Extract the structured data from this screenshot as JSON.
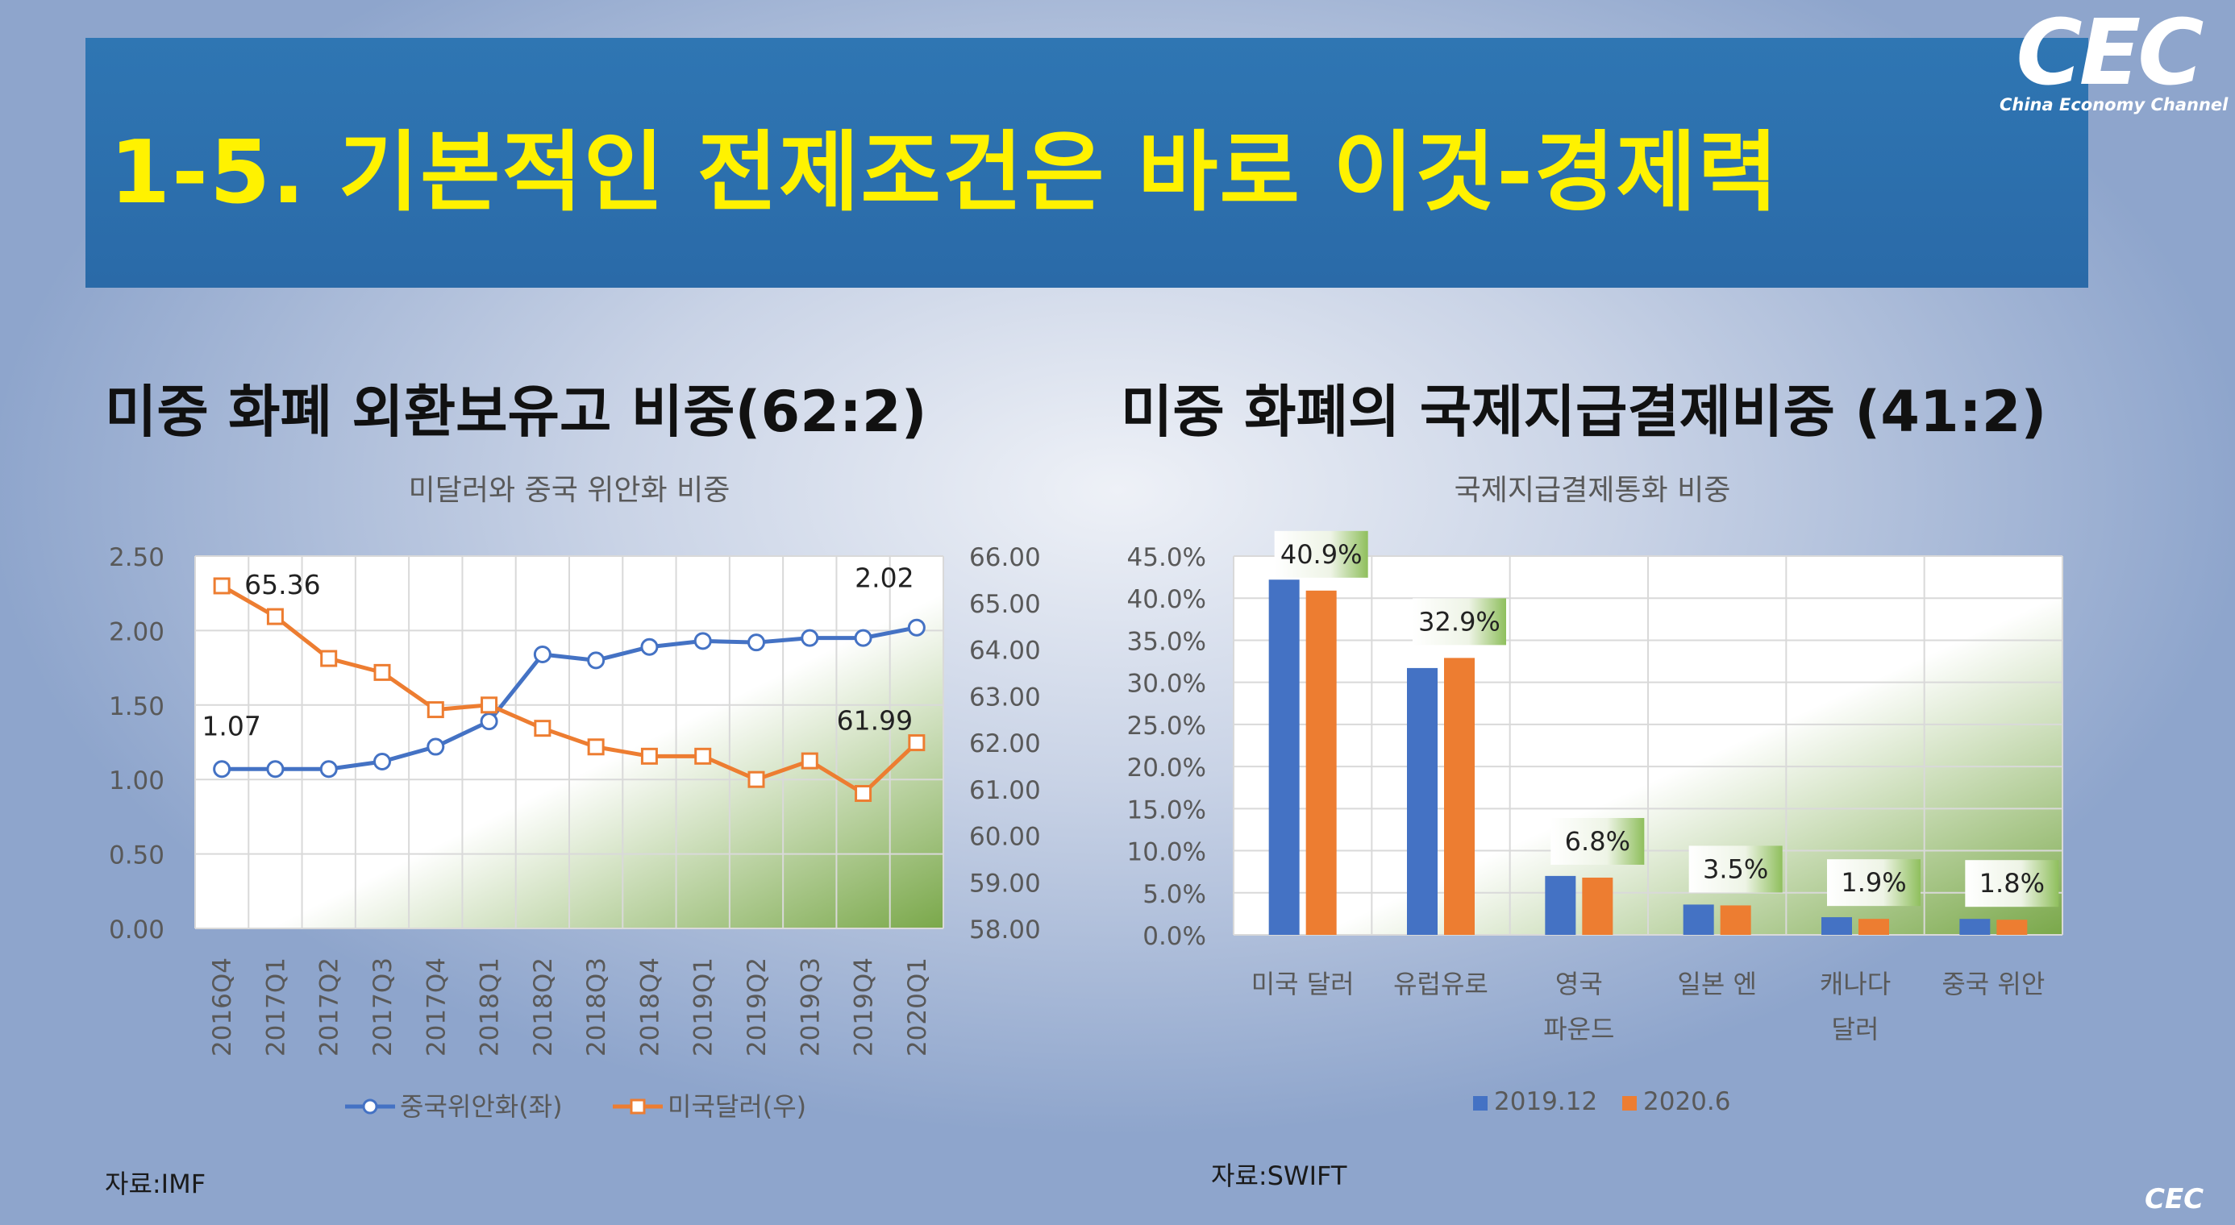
{
  "banner": {
    "title": "1-5. 기본적인 전제조건은 바로 이것-경제력"
  },
  "logo": {
    "text": "CEC",
    "subtitle": "China Economy Channel"
  },
  "left": {
    "section_title": "미중 화폐 외환보유고 비중(62:2)",
    "source": "자료:IMF"
  },
  "right": {
    "section_title": "미중 화폐의 국제지급결제비중 (41:2)",
    "source": "자료:SWIFT"
  },
  "footer": {
    "logo": "CEC"
  },
  "colors": {
    "blue": "#4472c4",
    "orange": "#ed7d31",
    "banner": "#2f76b3",
    "title_yellow": "#fff200"
  },
  "chart_data": [
    {
      "type": "line",
      "title": "미달러와 중국 위안화 비중",
      "categories": [
        "2016Q4",
        "2017Q1",
        "2017Q2",
        "2017Q3",
        "2017Q4",
        "2018Q1",
        "2018Q2",
        "2018Q3",
        "2018Q4",
        "2019Q1",
        "2019Q2",
        "2019Q3",
        "2019Q4",
        "2020Q1"
      ],
      "y_left": {
        "range": [
          0,
          2.5
        ],
        "ticks": [
          "0.00",
          "0.50",
          "1.00",
          "1.50",
          "2.00",
          "2.50"
        ]
      },
      "y_right": {
        "range": [
          58,
          66
        ],
        "ticks": [
          "58.00",
          "59.00",
          "60.00",
          "61.00",
          "62.00",
          "63.00",
          "64.00",
          "65.00",
          "66.00"
        ]
      },
      "series": [
        {
          "name": "중국위안화(좌)",
          "axis": "left",
          "color": "#4472c4",
          "marker": "circle",
          "values": [
            1.07,
            1.07,
            1.07,
            1.12,
            1.22,
            1.39,
            1.84,
            1.8,
            1.89,
            1.93,
            1.92,
            1.95,
            1.95,
            2.02
          ]
        },
        {
          "name": "미국달러(우)",
          "axis": "right",
          "color": "#ed7d31",
          "marker": "square",
          "values": [
            65.36,
            64.7,
            63.8,
            63.5,
            62.7,
            62.8,
            62.3,
            61.9,
            61.7,
            61.7,
            61.2,
            61.6,
            60.9,
            61.99
          ]
        }
      ],
      "data_labels": [
        {
          "series": 0,
          "index": 0,
          "text": "1.07"
        },
        {
          "series": 0,
          "index": 13,
          "text": "2.02"
        },
        {
          "series": 1,
          "index": 0,
          "text": "65.36"
        },
        {
          "series": 1,
          "index": 13,
          "text": "61.99"
        }
      ],
      "legend": "bottom",
      "grid": true
    },
    {
      "type": "bar",
      "title": "국제지급결제통화 비중",
      "categories": [
        [
          "미국 달러"
        ],
        [
          "유럽유로"
        ],
        [
          "영국",
          "파운드"
        ],
        [
          "일본 엔"
        ],
        [
          "캐나다",
          "달러"
        ],
        [
          "중국 위안"
        ]
      ],
      "y_range": [
        0,
        45
      ],
      "y_ticks": [
        "0.0%",
        "5.0%",
        "10.0%",
        "15.0%",
        "20.0%",
        "25.0%",
        "30.0%",
        "35.0%",
        "40.0%",
        "45.0%"
      ],
      "series": [
        {
          "name": "2019.12",
          "color": "#4472c4",
          "values": [
            42.2,
            31.7,
            7.0,
            3.6,
            2.1,
            1.9
          ]
        },
        {
          "name": "2020.6",
          "color": "#ed7d31",
          "values": [
            40.9,
            32.9,
            6.8,
            3.5,
            1.9,
            1.8
          ]
        }
      ],
      "data_labels": [
        "40.9%",
        "32.9%",
        "6.8%",
        "3.5%",
        "1.9%",
        "1.8%"
      ],
      "legend": "bottom",
      "grid": true
    }
  ]
}
